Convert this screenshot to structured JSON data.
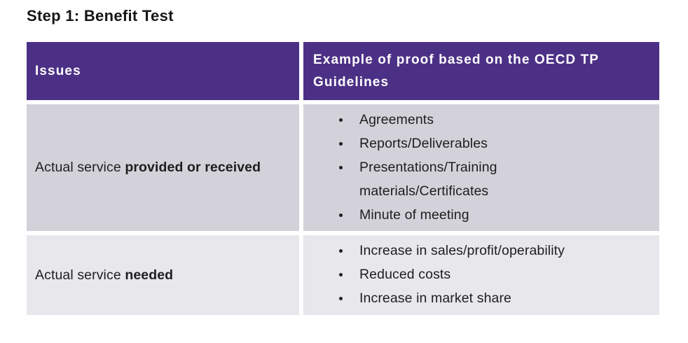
{
  "title": "Step 1: Benefit Test",
  "colors": {
    "header_bg": "#4C3085",
    "header_text": "#ffffff",
    "row1_bg": "#D3D1DA",
    "row2_bg": "#E8E7EB",
    "body_text": "#1e1e1e",
    "gutter": "#ffffff"
  },
  "table": {
    "headers": [
      {
        "label": "Issues"
      },
      {
        "label": "Example of proof based on the OECD TP Guidelines"
      }
    ],
    "rows": [
      {
        "issue": {
          "prefix": "Actual service ",
          "bold": "provided or received"
        },
        "bullets": [
          "Agreements",
          "Reports/Deliverables",
          "Presentations/Training materials/Certificates",
          "Minute of meeting"
        ]
      },
      {
        "issue": {
          "prefix": "Actual service ",
          "bold": "needed"
        },
        "bullets": [
          "Increase in sales/profit/operability",
          "Reduced costs",
          "Increase in market share"
        ]
      }
    ]
  }
}
